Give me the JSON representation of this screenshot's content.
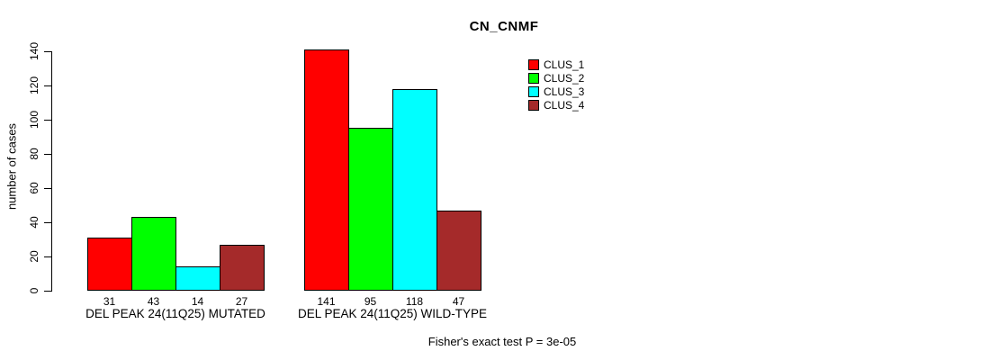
{
  "chart_data": {
    "type": "bar",
    "title": "CN_CNMF",
    "ylabel": "number of cases",
    "ylim": [
      0,
      140
    ],
    "yticks": [
      0,
      20,
      40,
      60,
      80,
      100,
      120,
      140
    ],
    "grid": false,
    "legend_position": "top-right",
    "legend": [
      {
        "name": "CLUS_1",
        "color": "#ff0000"
      },
      {
        "name": "CLUS_2",
        "color": "#00ff00"
      },
      {
        "name": "CLUS_3",
        "color": "#00ffff"
      },
      {
        "name": "CLUS_4",
        "color": "#a52a2a"
      }
    ],
    "groups": [
      {
        "label": "DEL PEAK 24(11Q25) MUTATED",
        "values": [
          31,
          43,
          14,
          27
        ]
      },
      {
        "label": "DEL PEAK 24(11Q25) WILD-TYPE",
        "values": [
          141,
          95,
          118,
          47
        ]
      }
    ],
    "footnote": "Fisher's exact test P = 3e-05"
  }
}
